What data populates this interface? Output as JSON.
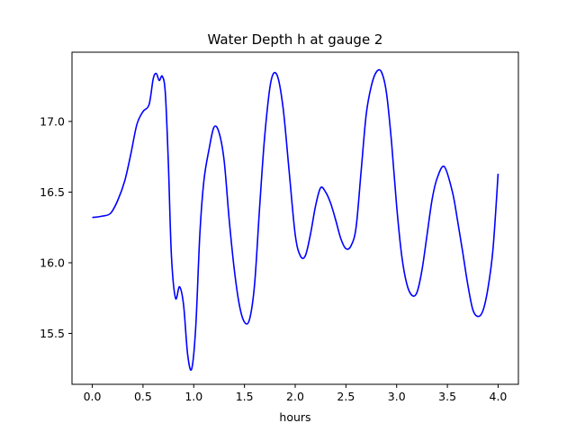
{
  "chart_data": {
    "type": "line",
    "title": "Water Depth h at gauge 2",
    "xlabel": "hours",
    "ylabel": "",
    "xlim": [
      -0.2,
      4.2
    ],
    "ylim": [
      15.14,
      17.49
    ],
    "xticks": [
      0.0,
      0.5,
      1.0,
      1.5,
      2.0,
      2.5,
      3.0,
      3.5,
      4.0
    ],
    "xtick_labels": [
      "0.0",
      "0.5",
      "1.0",
      "1.5",
      "2.0",
      "2.5",
      "3.0",
      "3.5",
      "4.0"
    ],
    "yticks": [
      15.5,
      16.0,
      16.5,
      17.0
    ],
    "ytick_labels": [
      "15.5",
      "16.0",
      "16.5",
      "17.0"
    ],
    "grid": false,
    "series": [
      {
        "color": "#0000ff",
        "x": [
          0.0,
          0.1,
          0.18,
          0.25,
          0.32,
          0.38,
          0.44,
          0.5,
          0.56,
          0.6,
          0.63,
          0.66,
          0.69,
          0.72,
          0.75,
          0.78,
          0.82,
          0.86,
          0.9,
          0.94,
          0.98,
          1.02,
          1.06,
          1.1,
          1.15,
          1.2,
          1.25,
          1.3,
          1.35,
          1.4,
          1.45,
          1.5,
          1.55,
          1.6,
          1.65,
          1.7,
          1.76,
          1.82,
          1.88,
          1.94,
          2.0,
          2.05,
          2.1,
          2.15,
          2.2,
          2.25,
          2.3,
          2.35,
          2.4,
          2.45,
          2.5,
          2.55,
          2.6,
          2.65,
          2.7,
          2.75,
          2.8,
          2.85,
          2.9,
          2.95,
          3.0,
          3.05,
          3.1,
          3.15,
          3.2,
          3.25,
          3.3,
          3.35,
          3.4,
          3.47,
          3.55,
          3.6,
          3.65,
          3.7,
          3.75,
          3.8,
          3.85,
          3.9,
          3.95,
          4.0
        ],
        "y": [
          16.32,
          16.33,
          16.35,
          16.44,
          16.58,
          16.77,
          16.98,
          17.07,
          17.12,
          17.3,
          17.34,
          17.29,
          17.32,
          17.2,
          16.7,
          16.05,
          15.75,
          15.83,
          15.7,
          15.35,
          15.25,
          15.55,
          16.2,
          16.58,
          16.8,
          16.96,
          16.92,
          16.72,
          16.3,
          15.95,
          15.7,
          15.58,
          15.6,
          15.85,
          16.4,
          16.9,
          17.28,
          17.33,
          17.1,
          16.65,
          16.2,
          16.05,
          16.05,
          16.2,
          16.4,
          16.53,
          16.5,
          16.42,
          16.3,
          16.17,
          16.1,
          16.12,
          16.25,
          16.65,
          17.05,
          17.25,
          17.35,
          17.35,
          17.2,
          16.85,
          16.4,
          16.05,
          15.85,
          15.77,
          15.79,
          15.95,
          16.2,
          16.45,
          16.6,
          16.68,
          16.5,
          16.3,
          16.08,
          15.85,
          15.67,
          15.62,
          15.66,
          15.82,
          16.1,
          16.63
        ]
      }
    ]
  }
}
